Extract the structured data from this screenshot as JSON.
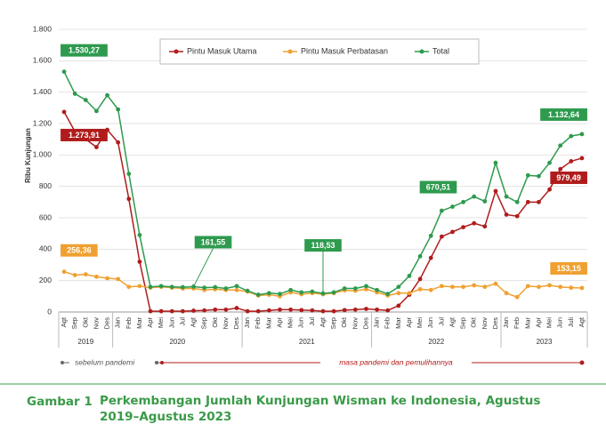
{
  "chart_data": {
    "type": "line",
    "y_label": "Ribu Kunjungan",
    "categories": [
      "Agt",
      "Sep",
      "Okt",
      "Nov",
      "Des",
      "Jan",
      "Feb",
      "Mar",
      "Apr",
      "Mei",
      "Jun",
      "Jul",
      "Agt",
      "Sep",
      "Okt",
      "Nov",
      "Des",
      "Jan",
      "Feb",
      "Mar",
      "Apr",
      "Mei",
      "Jun",
      "Jul",
      "Agt",
      "Sep",
      "Okt",
      "Nov",
      "Des",
      "Jan",
      "Feb",
      "Mar",
      "Apr",
      "Mei",
      "Jun",
      "Jul",
      "Agt",
      "Sep",
      "Okt",
      "Nov",
      "Des",
      "Jan",
      "Feb",
      "Mar",
      "Apr",
      "Mei",
      "Jun",
      "Juli",
      "Agt"
    ],
    "year_groups": [
      {
        "name": "2019",
        "count": 5
      },
      {
        "name": "2020",
        "count": 12
      },
      {
        "name": "2021",
        "count": 12
      },
      {
        "name": "2022",
        "count": 12
      },
      {
        "name": "2023",
        "count": 8
      }
    ],
    "series": [
      {
        "name": "Pintu Masuk Utama",
        "color": "#b01c1c",
        "values": [
          1273.91,
          1150,
          1100,
          1050,
          1160,
          1080,
          720,
          320,
          5,
          5,
          5,
          5,
          8,
          10,
          15,
          15,
          25,
          5,
          5,
          10,
          15,
          15,
          12,
          10,
          5,
          5,
          12,
          15,
          20,
          15,
          10,
          40,
          110,
          210,
          345,
          480,
          510,
          540,
          565,
          545,
          770,
          620,
          610,
          700,
          700,
          780,
          910,
          960,
          979.49
        ],
        "value_labels": {
          "0": "1.273,91",
          "48": "979,49"
        }
      },
      {
        "name": "Pintu Masuk Perbatasan",
        "color": "#f0a030",
        "values": [
          256.36,
          235,
          240,
          225,
          215,
          210,
          160,
          165,
          155,
          160,
          155,
          150,
          150,
          140,
          145,
          140,
          140,
          130,
          105,
          110,
          100,
          125,
          113,
          120,
          113,
          120,
          138,
          135,
          145,
          125,
          105,
          120,
          120,
          145,
          140,
          165,
          160,
          160,
          170,
          160,
          180,
          120,
          95,
          165,
          160,
          170,
          160,
          155,
          153.15
        ],
        "value_labels": {
          "0": "256,36",
          "48": "153,15"
        }
      },
      {
        "name": "Total",
        "color": "#2e9a4e",
        "values": [
          1530.27,
          1390,
          1350,
          1280,
          1380,
          1290,
          880,
          490,
          160,
          165,
          160,
          158,
          161.55,
          155,
          158,
          150,
          165,
          135,
          110,
          120,
          115,
          140,
          125,
          130,
          118.53,
          125,
          150,
          150,
          165,
          140,
          115,
          160,
          230,
          355,
          485,
          645,
          670.51,
          700,
          735,
          705,
          950,
          735,
          700,
          870,
          865,
          950,
          1060,
          1120,
          1132.64
        ],
        "value_labels": {
          "0": "1.530,27",
          "12": "161,55",
          "24": "118,53",
          "36": "670,51",
          "48": "1.132,64"
        }
      }
    ],
    "ylim": [
      0,
      1800
    ],
    "yticks": [
      0,
      200,
      400,
      600,
      800,
      {
        "value": 1000,
        "label": "1.000"
      },
      {
        "value": 1200,
        "label": "1.200"
      },
      {
        "value": 1400,
        "label": "1.400"
      },
      {
        "value": 1600,
        "label": "1.600"
      },
      {
        "value": 1800,
        "label": "1.800"
      }
    ],
    "grid": true,
    "legend": "top",
    "periods": [
      "sebelum pandemi",
      "masa pandemi dan pemulihannya"
    ],
    "caption_number": "Gambar 1",
    "caption": "Perkembangan Jumlah Kunjungan Wisman ke Indonesia, Agustus 2019–Agustus 2023"
  }
}
